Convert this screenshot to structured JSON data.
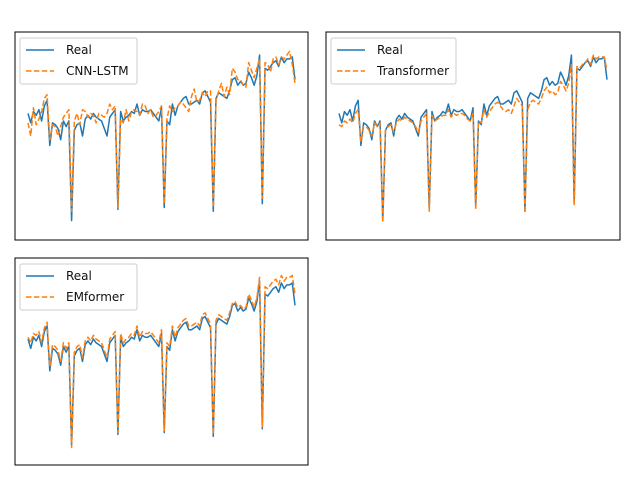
{
  "colors": {
    "real": "#1f77b4",
    "pred": "#ff7f0e",
    "frame": "#000000"
  },
  "chart_data": [
    {
      "type": "line",
      "ylim": [
        0.0,
        1.0
      ],
      "legend_position": "top-left",
      "grid": false,
      "series": [
        {
          "name": "Real",
          "style": "solid",
          "values": [
            0.62,
            0.57,
            0.63,
            0.61,
            0.64,
            0.58,
            0.66,
            0.69,
            0.45,
            0.57,
            0.56,
            0.54,
            0.48,
            0.58,
            0.55,
            0.58,
            0.05,
            0.53,
            0.56,
            0.57,
            0.5,
            0.59,
            0.61,
            0.59,
            0.62,
            0.6,
            0.59,
            0.58,
            0.54,
            0.5,
            0.6,
            0.62,
            0.64,
            0.11,
            0.63,
            0.58,
            0.6,
            0.61,
            0.63,
            0.62,
            0.67,
            0.61,
            0.64,
            0.63,
            0.63,
            0.64,
            0.62,
            0.6,
            0.58,
            0.65,
            0.12,
            0.58,
            0.56,
            0.67,
            0.61,
            0.66,
            0.68,
            0.7,
            0.71,
            0.67,
            0.67,
            0.68,
            0.69,
            0.67,
            0.73,
            0.74,
            0.71,
            0.68,
            0.1,
            0.7,
            0.73,
            0.72,
            0.71,
            0.7,
            0.74,
            0.8,
            0.81,
            0.77,
            0.79,
            0.77,
            0.78,
            0.84,
            0.81,
            0.77,
            0.82,
            0.93,
            0.14,
            0.86,
            0.85,
            0.87,
            0.89,
            0.9,
            0.87,
            0.92,
            0.89,
            0.91,
            0.91,
            0.92,
            0.8
          ]
        },
        {
          "name": "CNN-LSTM",
          "style": "dashed",
          "values": [
            0.57,
            0.5,
            0.65,
            0.56,
            0.59,
            0.63,
            0.7,
            0.72,
            0.48,
            0.56,
            0.55,
            0.5,
            0.55,
            0.6,
            0.62,
            0.64,
            0.1,
            0.58,
            0.62,
            0.56,
            0.64,
            0.63,
            0.6,
            0.62,
            0.61,
            0.57,
            0.62,
            0.61,
            0.6,
            0.62,
            0.67,
            0.64,
            0.66,
            0.12,
            0.59,
            0.57,
            0.64,
            0.58,
            0.63,
            0.64,
            0.63,
            0.61,
            0.67,
            0.66,
            0.62,
            0.64,
            0.6,
            0.61,
            0.63,
            0.66,
            0.14,
            0.59,
            0.66,
            0.63,
            0.65,
            0.66,
            0.68,
            0.67,
            0.65,
            0.63,
            0.71,
            0.75,
            0.68,
            0.69,
            0.73,
            0.71,
            0.74,
            0.74,
            0.12,
            0.69,
            0.74,
            0.78,
            0.71,
            0.76,
            0.72,
            0.86,
            0.84,
            0.8,
            0.8,
            0.77,
            0.76,
            0.89,
            0.85,
            0.81,
            0.86,
            0.91,
            0.17,
            0.89,
            0.88,
            0.84,
            0.91,
            0.92,
            0.88,
            0.92,
            0.91,
            0.93,
            0.95,
            0.88,
            0.78
          ]
        }
      ]
    },
    {
      "type": "line",
      "ylim": [
        0.0,
        1.0
      ],
      "legend_position": "top-left",
      "grid": false,
      "series": [
        {
          "name": "Real",
          "style": "solid",
          "values": [
            0.62,
            0.57,
            0.63,
            0.61,
            0.64,
            0.58,
            0.66,
            0.69,
            0.45,
            0.57,
            0.56,
            0.54,
            0.48,
            0.58,
            0.55,
            0.58,
            0.05,
            0.53,
            0.56,
            0.57,
            0.5,
            0.59,
            0.61,
            0.59,
            0.62,
            0.6,
            0.59,
            0.58,
            0.54,
            0.5,
            0.6,
            0.62,
            0.64,
            0.11,
            0.63,
            0.58,
            0.6,
            0.61,
            0.63,
            0.62,
            0.67,
            0.61,
            0.64,
            0.63,
            0.63,
            0.64,
            0.62,
            0.6,
            0.58,
            0.65,
            0.12,
            0.58,
            0.56,
            0.67,
            0.61,
            0.66,
            0.68,
            0.7,
            0.71,
            0.67,
            0.67,
            0.68,
            0.69,
            0.67,
            0.73,
            0.74,
            0.71,
            0.68,
            0.1,
            0.7,
            0.73,
            0.72,
            0.71,
            0.7,
            0.74,
            0.8,
            0.81,
            0.77,
            0.79,
            0.77,
            0.78,
            0.84,
            0.81,
            0.77,
            0.82,
            0.93,
            0.14,
            0.86,
            0.85,
            0.87,
            0.89,
            0.9,
            0.87,
            0.92,
            0.89,
            0.91,
            0.91,
            0.92,
            0.8
          ]
        },
        {
          "name": "Transformer",
          "style": "dashed",
          "values": [
            0.56,
            0.55,
            0.58,
            0.57,
            0.59,
            0.57,
            0.62,
            0.64,
            0.47,
            0.55,
            0.55,
            0.53,
            0.5,
            0.57,
            0.55,
            0.57,
            0.04,
            0.53,
            0.55,
            0.56,
            0.52,
            0.57,
            0.59,
            0.58,
            0.6,
            0.59,
            0.58,
            0.57,
            0.55,
            0.52,
            0.58,
            0.6,
            0.62,
            0.1,
            0.61,
            0.58,
            0.59,
            0.6,
            0.61,
            0.61,
            0.64,
            0.6,
            0.62,
            0.61,
            0.62,
            0.62,
            0.61,
            0.59,
            0.58,
            0.62,
            0.11,
            0.58,
            0.57,
            0.64,
            0.6,
            0.63,
            0.65,
            0.67,
            0.68,
            0.66,
            0.64,
            0.63,
            0.64,
            0.62,
            0.66,
            0.7,
            0.68,
            0.66,
            0.09,
            0.64,
            0.68,
            0.69,
            0.68,
            0.67,
            0.7,
            0.74,
            0.76,
            0.73,
            0.74,
            0.72,
            0.73,
            0.79,
            0.77,
            0.74,
            0.78,
            0.88,
            0.13,
            0.87,
            0.86,
            0.88,
            0.89,
            0.91,
            0.88,
            0.93,
            0.91,
            0.92,
            0.92,
            0.92,
            0.85
          ]
        }
      ]
    },
    {
      "type": "line",
      "ylim": [
        0.0,
        1.0
      ],
      "legend_position": "top-left",
      "grid": false,
      "series": [
        {
          "name": "Real",
          "style": "solid",
          "values": [
            0.62,
            0.57,
            0.63,
            0.61,
            0.64,
            0.58,
            0.66,
            0.69,
            0.45,
            0.57,
            0.56,
            0.54,
            0.48,
            0.58,
            0.55,
            0.58,
            0.05,
            0.53,
            0.56,
            0.57,
            0.5,
            0.59,
            0.61,
            0.59,
            0.62,
            0.6,
            0.59,
            0.58,
            0.54,
            0.5,
            0.6,
            0.62,
            0.64,
            0.11,
            0.63,
            0.58,
            0.6,
            0.61,
            0.63,
            0.62,
            0.67,
            0.61,
            0.64,
            0.63,
            0.63,
            0.64,
            0.62,
            0.6,
            0.58,
            0.65,
            0.12,
            0.58,
            0.56,
            0.67,
            0.61,
            0.66,
            0.68,
            0.7,
            0.71,
            0.67,
            0.67,
            0.68,
            0.69,
            0.67,
            0.73,
            0.74,
            0.71,
            0.68,
            0.1,
            0.7,
            0.73,
            0.72,
            0.71,
            0.7,
            0.74,
            0.8,
            0.81,
            0.77,
            0.79,
            0.77,
            0.78,
            0.84,
            0.81,
            0.77,
            0.82,
            0.93,
            0.14,
            0.86,
            0.85,
            0.87,
            0.89,
            0.9,
            0.87,
            0.92,
            0.89,
            0.91,
            0.91,
            0.92,
            0.8
          ]
        },
        {
          "name": "EMformer",
          "style": "dashed",
          "values": [
            0.63,
            0.6,
            0.65,
            0.64,
            0.66,
            0.6,
            0.68,
            0.71,
            0.47,
            0.59,
            0.58,
            0.56,
            0.5,
            0.6,
            0.57,
            0.6,
            0.04,
            0.55,
            0.58,
            0.59,
            0.52,
            0.61,
            0.63,
            0.61,
            0.64,
            0.62,
            0.61,
            0.6,
            0.56,
            0.52,
            0.62,
            0.64,
            0.66,
            0.12,
            0.65,
            0.6,
            0.62,
            0.63,
            0.65,
            0.64,
            0.69,
            0.63,
            0.66,
            0.65,
            0.65,
            0.66,
            0.64,
            0.62,
            0.6,
            0.67,
            0.13,
            0.6,
            0.58,
            0.69,
            0.63,
            0.68,
            0.7,
            0.72,
            0.73,
            0.69,
            0.69,
            0.7,
            0.71,
            0.69,
            0.75,
            0.76,
            0.73,
            0.7,
            0.11,
            0.72,
            0.75,
            0.74,
            0.73,
            0.72,
            0.76,
            0.81,
            0.82,
            0.79,
            0.8,
            0.78,
            0.79,
            0.86,
            0.83,
            0.79,
            0.84,
            0.95,
            0.15,
            0.9,
            0.89,
            0.91,
            0.93,
            0.94,
            0.91,
            0.96,
            0.93,
            0.95,
            0.95,
            0.96,
            0.86
          ]
        }
      ]
    }
  ]
}
